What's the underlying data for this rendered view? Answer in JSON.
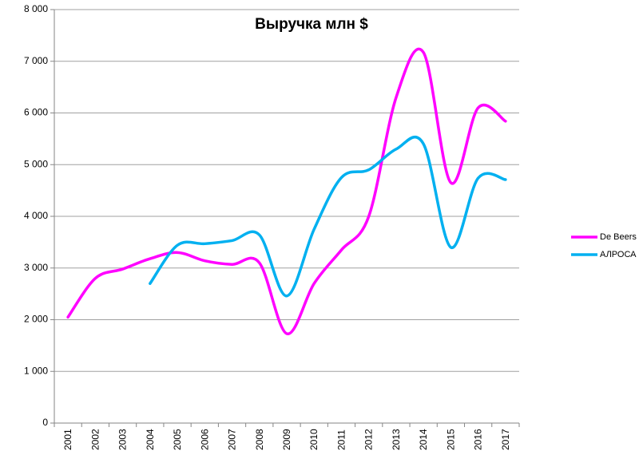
{
  "chart_data": {
    "type": "line",
    "title": "Выручка млн $",
    "xlabel": "",
    "ylabel": "",
    "ylim": [
      0,
      8000
    ],
    "y_ticks": [
      0,
      1000,
      2000,
      3000,
      4000,
      5000,
      6000,
      7000,
      8000
    ],
    "y_tick_labels": [
      "0",
      "1 000",
      "2 000",
      "3 000",
      "4 000",
      "5 000",
      "6 000",
      "7 000",
      "8 000"
    ],
    "categories": [
      "2001",
      "2002",
      "2003",
      "2004",
      "2005",
      "2006",
      "2007",
      "2008",
      "2009",
      "2010",
      "2011",
      "2012",
      "2013",
      "2014",
      "2015",
      "2016",
      "2017"
    ],
    "grid": "horizontal",
    "legend_position": "right",
    "series": [
      {
        "name": "De Beers",
        "color": "#ff00ff",
        "values": [
          2050,
          2800,
          2980,
          3180,
          3300,
          3140,
          3070,
          3100,
          1730,
          2700,
          3350,
          4000,
          6300,
          7170,
          4650,
          6100,
          5840
        ]
      },
      {
        "name": "АЛРОСА",
        "color": "#00b0f0",
        "values": [
          null,
          null,
          null,
          2700,
          3440,
          3470,
          3530,
          3640,
          2460,
          3750,
          4750,
          4900,
          5300,
          5400,
          3400,
          4740,
          4710
        ]
      }
    ]
  }
}
